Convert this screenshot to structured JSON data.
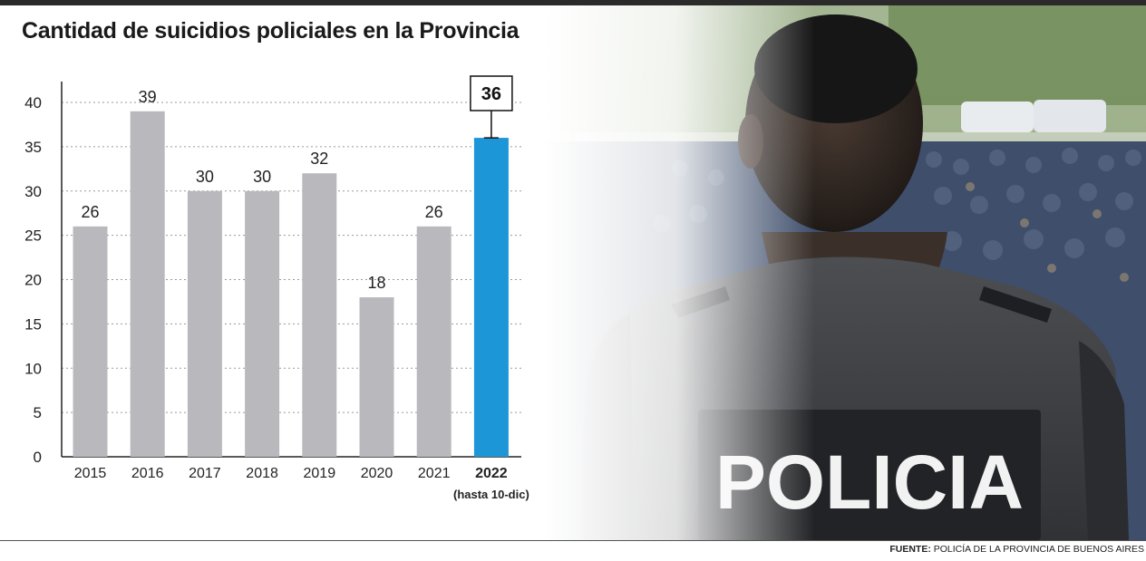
{
  "chart_data": {
    "type": "bar",
    "title": "Cantidad de suicidios policiales en la Provincia",
    "categories": [
      "2015",
      "2016",
      "2017",
      "2018",
      "2019",
      "2020",
      "2021",
      "2022"
    ],
    "values": [
      26,
      39,
      30,
      30,
      32,
      18,
      26,
      36
    ],
    "value_labels": [
      "26",
      "39",
      "30",
      "30",
      "32",
      "18",
      "26",
      "36"
    ],
    "highlight_note": "(hasta 10-dic)",
    "yticks": [
      "0",
      "5",
      "10",
      "15",
      "20",
      "25",
      "30",
      "35",
      "40"
    ],
    "ylim": [
      0,
      40
    ],
    "xlabel": "",
    "ylabel": "",
    "grid": true,
    "colors": {
      "bar": "#b9b9bd",
      "highlight": "#1d96d8",
      "grid": "#9a9a9a",
      "axis": "#222222"
    }
  },
  "photo": {
    "badge_text": "POLICIA"
  },
  "source": {
    "label": "FUENTE:",
    "text": "POLICÍA DE LA PROVINCIA DE BUENOS AIRES"
  }
}
